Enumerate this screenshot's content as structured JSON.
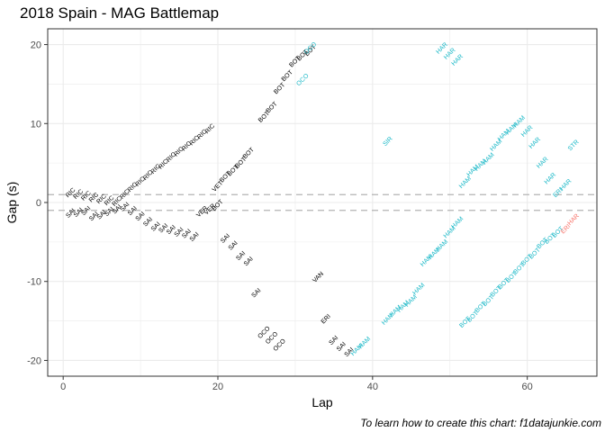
{
  "title": "2018 Spain - MAG Battlemap",
  "caption": "To learn how to create this chart: f1datajunkie.com",
  "colors": {
    "ahead": "#000000",
    "lapped": "#1db9c8",
    "highlight": "#f8766d",
    "refline": "#b3b3b3",
    "grid": "#ebebeb",
    "border": "#333333"
  },
  "chart_data": {
    "type": "scatter",
    "title": "2018 Spain - MAG Battlemap",
    "xlabel": "Lap",
    "ylabel": "Gap (s)",
    "xlim": [
      -2,
      69
    ],
    "ylim": [
      -22,
      22
    ],
    "xticks": [
      0,
      20,
      40,
      60
    ],
    "yticks": [
      -20,
      -10,
      0,
      10,
      20
    ],
    "hlines": [
      1,
      -1
    ],
    "grid": true,
    "legend": "none",
    "points": [
      {
        "x": 1,
        "y": 1.2,
        "label": "RIC",
        "c": "ahead"
      },
      {
        "x": 2,
        "y": 1.0,
        "label": "RIC",
        "c": "ahead"
      },
      {
        "x": 3,
        "y": 0.8,
        "label": "RIC",
        "c": "ahead"
      },
      {
        "x": 4,
        "y": 0.6,
        "label": "RIC",
        "c": "ahead"
      },
      {
        "x": 5,
        "y": 0.4,
        "label": "RIC",
        "c": "ahead"
      },
      {
        "x": 6,
        "y": 0.2,
        "label": "RIC",
        "c": "ahead"
      },
      {
        "x": 7,
        "y": 0.1,
        "label": "RIC",
        "c": "ahead"
      },
      {
        "x": 8,
        "y": 1.0,
        "label": "RIC",
        "c": "ahead"
      },
      {
        "x": 9,
        "y": 1.9,
        "label": "RIC",
        "c": "ahead"
      },
      {
        "x": 10,
        "y": 2.6,
        "label": "RIC",
        "c": "ahead"
      },
      {
        "x": 11,
        "y": 3.4,
        "label": "RIC",
        "c": "ahead"
      },
      {
        "x": 12,
        "y": 4.2,
        "label": "RIC",
        "c": "ahead"
      },
      {
        "x": 13,
        "y": 4.8,
        "label": "RIC",
        "c": "ahead"
      },
      {
        "x": 14,
        "y": 5.7,
        "label": "RIC",
        "c": "ahead"
      },
      {
        "x": 15,
        "y": 6.4,
        "label": "RIC",
        "c": "ahead"
      },
      {
        "x": 16,
        "y": 7.1,
        "label": "RIC",
        "c": "ahead"
      },
      {
        "x": 17,
        "y": 7.8,
        "label": "RIC",
        "c": "ahead"
      },
      {
        "x": 18,
        "y": 8.6,
        "label": "RIC",
        "c": "ahead"
      },
      {
        "x": 19,
        "y": 9.3,
        "label": "RIC",
        "c": "ahead"
      },
      {
        "x": 1,
        "y": -1.4,
        "label": "SAI",
        "c": "ahead"
      },
      {
        "x": 2,
        "y": -1.3,
        "label": "SAI",
        "c": "ahead"
      },
      {
        "x": 3,
        "y": -1.1,
        "label": "SAI",
        "c": "ahead"
      },
      {
        "x": 4,
        "y": -1.8,
        "label": "SAI",
        "c": "ahead"
      },
      {
        "x": 5,
        "y": -1.6,
        "label": "SAI",
        "c": "ahead"
      },
      {
        "x": 6,
        "y": -1.2,
        "label": "SAI",
        "c": "ahead"
      },
      {
        "x": 7,
        "y": -0.9,
        "label": "SAI",
        "c": "ahead"
      },
      {
        "x": 8,
        "y": -0.6,
        "label": "SAI",
        "c": "ahead"
      },
      {
        "x": 9,
        "y": -1.1,
        "label": "SAI",
        "c": "ahead"
      },
      {
        "x": 10,
        "y": -1.8,
        "label": "SAI",
        "c": "ahead"
      },
      {
        "x": 11,
        "y": -2.5,
        "label": "SAI",
        "c": "ahead"
      },
      {
        "x": 12,
        "y": -3.1,
        "label": "SAI",
        "c": "ahead"
      },
      {
        "x": 13,
        "y": -3.3,
        "label": "SAI",
        "c": "ahead"
      },
      {
        "x": 14,
        "y": -3.5,
        "label": "SAI",
        "c": "ahead"
      },
      {
        "x": 15,
        "y": -3.8,
        "label": "SAI",
        "c": "ahead"
      },
      {
        "x": 16,
        "y": -4.0,
        "label": "SAI",
        "c": "ahead"
      },
      {
        "x": 17,
        "y": -4.4,
        "label": "SAI",
        "c": "ahead"
      },
      {
        "x": 18,
        "y": -1.2,
        "label": "VER",
        "c": "ahead"
      },
      {
        "x": 19,
        "y": -0.9,
        "label": "VER",
        "c": "ahead"
      },
      {
        "x": 20,
        "y": 2.0,
        "label": "VET",
        "c": "ahead"
      },
      {
        "x": 20,
        "y": -0.4,
        "label": "BOT",
        "c": "ahead"
      },
      {
        "x": 21,
        "y": 3.2,
        "label": "BOT",
        "c": "ahead"
      },
      {
        "x": 22,
        "y": 4.0,
        "label": "BOT",
        "c": "ahead"
      },
      {
        "x": 23,
        "y": 5.0,
        "label": "BOT",
        "c": "ahead"
      },
      {
        "x": 24,
        "y": 6.2,
        "label": "BOT",
        "c": "ahead"
      },
      {
        "x": 26,
        "y": 10.8,
        "label": "BOT",
        "c": "ahead"
      },
      {
        "x": 27,
        "y": 12.0,
        "label": "BOT",
        "c": "ahead"
      },
      {
        "x": 28,
        "y": 14.4,
        "label": "BOT",
        "c": "ahead"
      },
      {
        "x": 29,
        "y": 16.0,
        "label": "BOT",
        "c": "ahead"
      },
      {
        "x": 30,
        "y": 17.8,
        "label": "BOT",
        "c": "ahead"
      },
      {
        "x": 31,
        "y": 18.6,
        "label": "BOT",
        "c": "ahead"
      },
      {
        "x": 32,
        "y": 19.2,
        "label": "BOT",
        "c": "ahead"
      },
      {
        "x": 21,
        "y": -4.6,
        "label": "SAI",
        "c": "ahead"
      },
      {
        "x": 22,
        "y": -5.5,
        "label": "SAI",
        "c": "ahead"
      },
      {
        "x": 23,
        "y": -6.8,
        "label": "SAI",
        "c": "ahead"
      },
      {
        "x": 24,
        "y": -7.5,
        "label": "SAI",
        "c": "ahead"
      },
      {
        "x": 25,
        "y": -11.5,
        "label": "SAI",
        "c": "ahead"
      },
      {
        "x": 26,
        "y": -16.5,
        "label": "OCO",
        "c": "ahead"
      },
      {
        "x": 27,
        "y": -17.2,
        "label": "OCO",
        "c": "ahead"
      },
      {
        "x": 28,
        "y": -18.1,
        "label": "OCO",
        "c": "ahead"
      },
      {
        "x": 33,
        "y": -9.5,
        "label": "VAN",
        "c": "ahead"
      },
      {
        "x": 34,
        "y": -14.8,
        "label": "ERI",
        "c": "ahead"
      },
      {
        "x": 35,
        "y": -17.5,
        "label": "SAI",
        "c": "ahead"
      },
      {
        "x": 36,
        "y": -18.3,
        "label": "SAI",
        "c": "ahead"
      },
      {
        "x": 37,
        "y": -19.0,
        "label": "SAI",
        "c": "ahead"
      },
      {
        "x": 32,
        "y": 19.5,
        "label": "OCO",
        "c": "lapped"
      },
      {
        "x": 31,
        "y": 15.5,
        "label": "OCO",
        "c": "lapped"
      },
      {
        "x": 42,
        "y": 7.7,
        "label": "SIR",
        "c": "lapped"
      },
      {
        "x": 49,
        "y": 19.5,
        "label": "HAR",
        "c": "lapped"
      },
      {
        "x": 50,
        "y": 18.8,
        "label": "HAR",
        "c": "lapped"
      },
      {
        "x": 51,
        "y": 18.0,
        "label": "HAR",
        "c": "lapped"
      },
      {
        "x": 38,
        "y": -18.7,
        "label": "HAM",
        "c": "lapped"
      },
      {
        "x": 39,
        "y": -17.8,
        "label": "HAM",
        "c": "lapped"
      },
      {
        "x": 42,
        "y": -14.8,
        "label": "HAM",
        "c": "lapped"
      },
      {
        "x": 43,
        "y": -13.8,
        "label": "HAM",
        "c": "lapped"
      },
      {
        "x": 44,
        "y": -13.2,
        "label": "HAM",
        "c": "lapped"
      },
      {
        "x": 45,
        "y": -12.5,
        "label": "HAM",
        "c": "lapped"
      },
      {
        "x": 46,
        "y": -11.0,
        "label": "HAM",
        "c": "lapped"
      },
      {
        "x": 47,
        "y": -7.4,
        "label": "HAM",
        "c": "lapped"
      },
      {
        "x": 48,
        "y": -6.5,
        "label": "HAM",
        "c": "lapped"
      },
      {
        "x": 49,
        "y": -5.5,
        "label": "HAM",
        "c": "lapped"
      },
      {
        "x": 50,
        "y": -3.8,
        "label": "HAM",
        "c": "lapped"
      },
      {
        "x": 51,
        "y": -2.6,
        "label": "HAM",
        "c": "lapped"
      },
      {
        "x": 52,
        "y": 2.5,
        "label": "HAM",
        "c": "lapped"
      },
      {
        "x": 53,
        "y": 4.0,
        "label": "HAM",
        "c": "lapped"
      },
      {
        "x": 54,
        "y": 4.7,
        "label": "HAM",
        "c": "lapped"
      },
      {
        "x": 55,
        "y": 5.5,
        "label": "HAM",
        "c": "lapped"
      },
      {
        "x": 56,
        "y": 7.2,
        "label": "HAM",
        "c": "lapped"
      },
      {
        "x": 57,
        "y": 8.5,
        "label": "HAM",
        "c": "lapped"
      },
      {
        "x": 58,
        "y": 9.3,
        "label": "HAM",
        "c": "lapped"
      },
      {
        "x": 59,
        "y": 10.2,
        "label": "HAM",
        "c": "lapped"
      },
      {
        "x": 60,
        "y": 9.0,
        "label": "HAR",
        "c": "lapped"
      },
      {
        "x": 61,
        "y": 7.5,
        "label": "HAR",
        "c": "lapped"
      },
      {
        "x": 62,
        "y": 5.0,
        "label": "HAR",
        "c": "lapped"
      },
      {
        "x": 63,
        "y": 3.0,
        "label": "HAR",
        "c": "lapped"
      },
      {
        "x": 64,
        "y": 1.2,
        "label": "ERI",
        "c": "lapped"
      },
      {
        "x": 65,
        "y": 2.2,
        "label": "HAR",
        "c": "lapped"
      },
      {
        "x": 66,
        "y": 7.2,
        "label": "STR",
        "c": "lapped"
      },
      {
        "x": 52,
        "y": -15.2,
        "label": "BOT",
        "c": "lapped"
      },
      {
        "x": 53,
        "y": -14.5,
        "label": "BOT",
        "c": "lapped"
      },
      {
        "x": 54,
        "y": -13.3,
        "label": "BOT",
        "c": "lapped"
      },
      {
        "x": 55,
        "y": -12.5,
        "label": "BOT",
        "c": "lapped"
      },
      {
        "x": 56,
        "y": -11.3,
        "label": "BOT",
        "c": "lapped"
      },
      {
        "x": 57,
        "y": -10.3,
        "label": "BOT",
        "c": "lapped"
      },
      {
        "x": 58,
        "y": -9.5,
        "label": "BOT",
        "c": "lapped"
      },
      {
        "x": 59,
        "y": -8.4,
        "label": "BOT",
        "c": "lapped"
      },
      {
        "x": 60,
        "y": -7.3,
        "label": "BOT",
        "c": "lapped"
      },
      {
        "x": 61,
        "y": -6.5,
        "label": "BOT",
        "c": "lapped"
      },
      {
        "x": 62,
        "y": -5.2,
        "label": "BOT",
        "c": "lapped"
      },
      {
        "x": 63,
        "y": -4.6,
        "label": "BOT",
        "c": "lapped"
      },
      {
        "x": 64,
        "y": -3.8,
        "label": "BOT",
        "c": "lapped"
      },
      {
        "x": 65,
        "y": -3.4,
        "label": "ERI",
        "c": "highlight"
      },
      {
        "x": 66,
        "y": -2.2,
        "label": "HAR",
        "c": "highlight"
      }
    ]
  }
}
